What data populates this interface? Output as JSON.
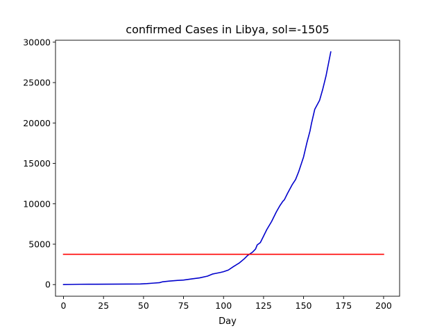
{
  "chart_data": {
    "type": "line",
    "title": "confirmed Cases in Libya, sol=-1505",
    "xlabel": "Day",
    "ylabel": "",
    "xlim": [
      -5,
      210
    ],
    "ylim": [
      -1440,
      30240
    ],
    "xticks": [
      0,
      25,
      50,
      75,
      100,
      125,
      150,
      175,
      200
    ],
    "yticks": [
      0,
      5000,
      10000,
      15000,
      20000,
      25000,
      30000
    ],
    "grid": false,
    "series": [
      {
        "color": "#0000cc",
        "x": [
          0,
          5,
          10,
          20,
          30,
          40,
          48,
          52,
          56,
          60,
          62,
          66,
          70,
          75,
          80,
          85,
          90,
          93,
          95,
          98,
          100,
          103,
          106,
          110,
          113,
          115,
          118,
          120,
          121,
          123,
          125,
          127,
          130,
          133,
          135,
          137,
          138,
          140,
          143,
          145,
          147,
          150,
          152,
          154,
          155,
          157,
          160,
          162,
          164,
          167
        ],
        "y": [
          0,
          20,
          40,
          50,
          60,
          70,
          80,
          120,
          180,
          240,
          350,
          430,
          500,
          560,
          700,
          830,
          1050,
          1300,
          1380,
          1500,
          1600,
          1800,
          2200,
          2700,
          3200,
          3600,
          4000,
          4400,
          4900,
          5200,
          6000,
          6800,
          7800,
          9000,
          9700,
          10300,
          10500,
          11300,
          12400,
          13000,
          14000,
          15800,
          17500,
          19000,
          20000,
          21700,
          22800,
          24200,
          25800,
          28800
        ]
      },
      {
        "color": "#ff0000",
        "x": [
          0,
          200
        ],
        "y": [
          3750,
          3750
        ]
      }
    ]
  }
}
